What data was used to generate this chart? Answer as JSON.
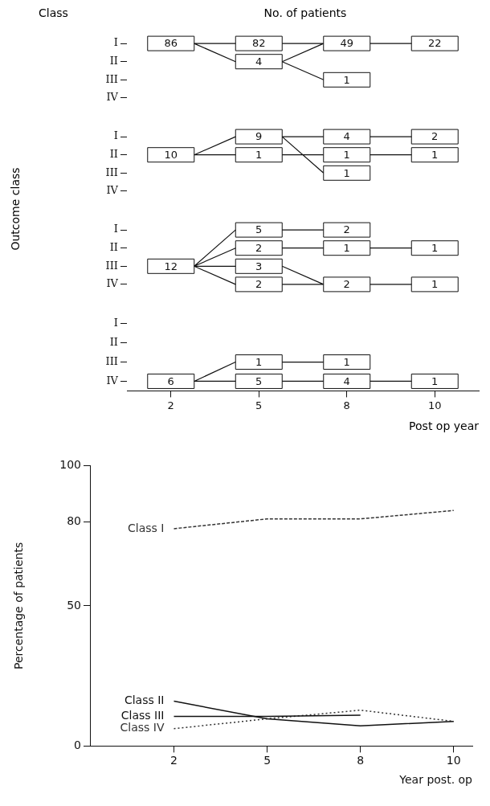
{
  "chart_data": [
    {
      "type": "heatmap",
      "title": "No. of patients",
      "ylabel": "Class",
      "categories": [
        "2",
        "5",
        "8",
        "10"
      ],
      "y_categories": [
        "I",
        "II",
        "III",
        "IV"
      ],
      "tick_labels": "y",
      "data_labels": true,
      "cells": [
        [
          86,
          82,
          49,
          22
        ],
        [
          null,
          4,
          null,
          null
        ],
        [
          null,
          null,
          1,
          null
        ],
        [
          null,
          null,
          null,
          null
        ]
      ]
    },
    {
      "type": "heatmap",
      "ylabel": "Outcome class",
      "categories": [
        "2",
        "5",
        "8",
        "10"
      ],
      "y_categories": [
        "I",
        "II",
        "III",
        "IV"
      ],
      "tick_labels": "y",
      "data_labels": true,
      "cells": [
        [
          null,
          9,
          4,
          2
        ],
        [
          10,
          1,
          1,
          1
        ],
        [
          null,
          null,
          1,
          null
        ],
        [
          null,
          null,
          null,
          null
        ]
      ]
    },
    {
      "type": "heatmap",
      "categories": [
        "2",
        "5",
        "8",
        "10"
      ],
      "y_categories": [
        "I",
        "II",
        "III",
        "IV"
      ],
      "tick_labels": "y",
      "data_labels": true,
      "cells": [
        [
          null,
          5,
          2,
          null
        ],
        [
          null,
          2,
          1,
          1
        ],
        [
          12,
          3,
          null,
          null
        ],
        [
          null,
          2,
          2,
          1
        ]
      ]
    },
    {
      "type": "heatmap",
      "xlabel": "Post op year",
      "categories": [
        "2",
        "5",
        "8",
        "10"
      ],
      "y_categories": [
        "I",
        "II",
        "III",
        "IV"
      ],
      "data_labels": true,
      "cells": [
        [
          null,
          null,
          null,
          null
        ],
        [
          null,
          null,
          null,
          null
        ],
        [
          null,
          1,
          1,
          null
        ],
        [
          6,
          5,
          4,
          1
        ]
      ]
    },
    {
      "type": "line",
      "xlabel": "Year post. op",
      "ylabel": "Percentage of patients",
      "categories": [
        "2",
        "5",
        "8",
        "10"
      ],
      "ylim": [
        0,
        100
      ],
      "yticks": [
        0,
        50,
        80,
        100
      ],
      "grid": false,
      "legend": false,
      "marker": "none",
      "series": [
        {
          "name": "Class I",
          "color": "#333333",
          "line_style": "dashed",
          "values": [
            77.5,
            81,
            81,
            84
          ]
        },
        {
          "name": "Class II",
          "color": "#111111",
          "line_style": "solid",
          "values": [
            16,
            9.7,
            7.2,
            8.8
          ]
        },
        {
          "name": "Class III",
          "color": "#111111",
          "line_style": "solid",
          "values": [
            10.6,
            10.6,
            11,
            null
          ]
        },
        {
          "name": "Class IV",
          "color": "#333333",
          "line_style": "dotted",
          "values": [
            6.2,
            9.7,
            12.8,
            8.8
          ]
        }
      ]
    }
  ]
}
